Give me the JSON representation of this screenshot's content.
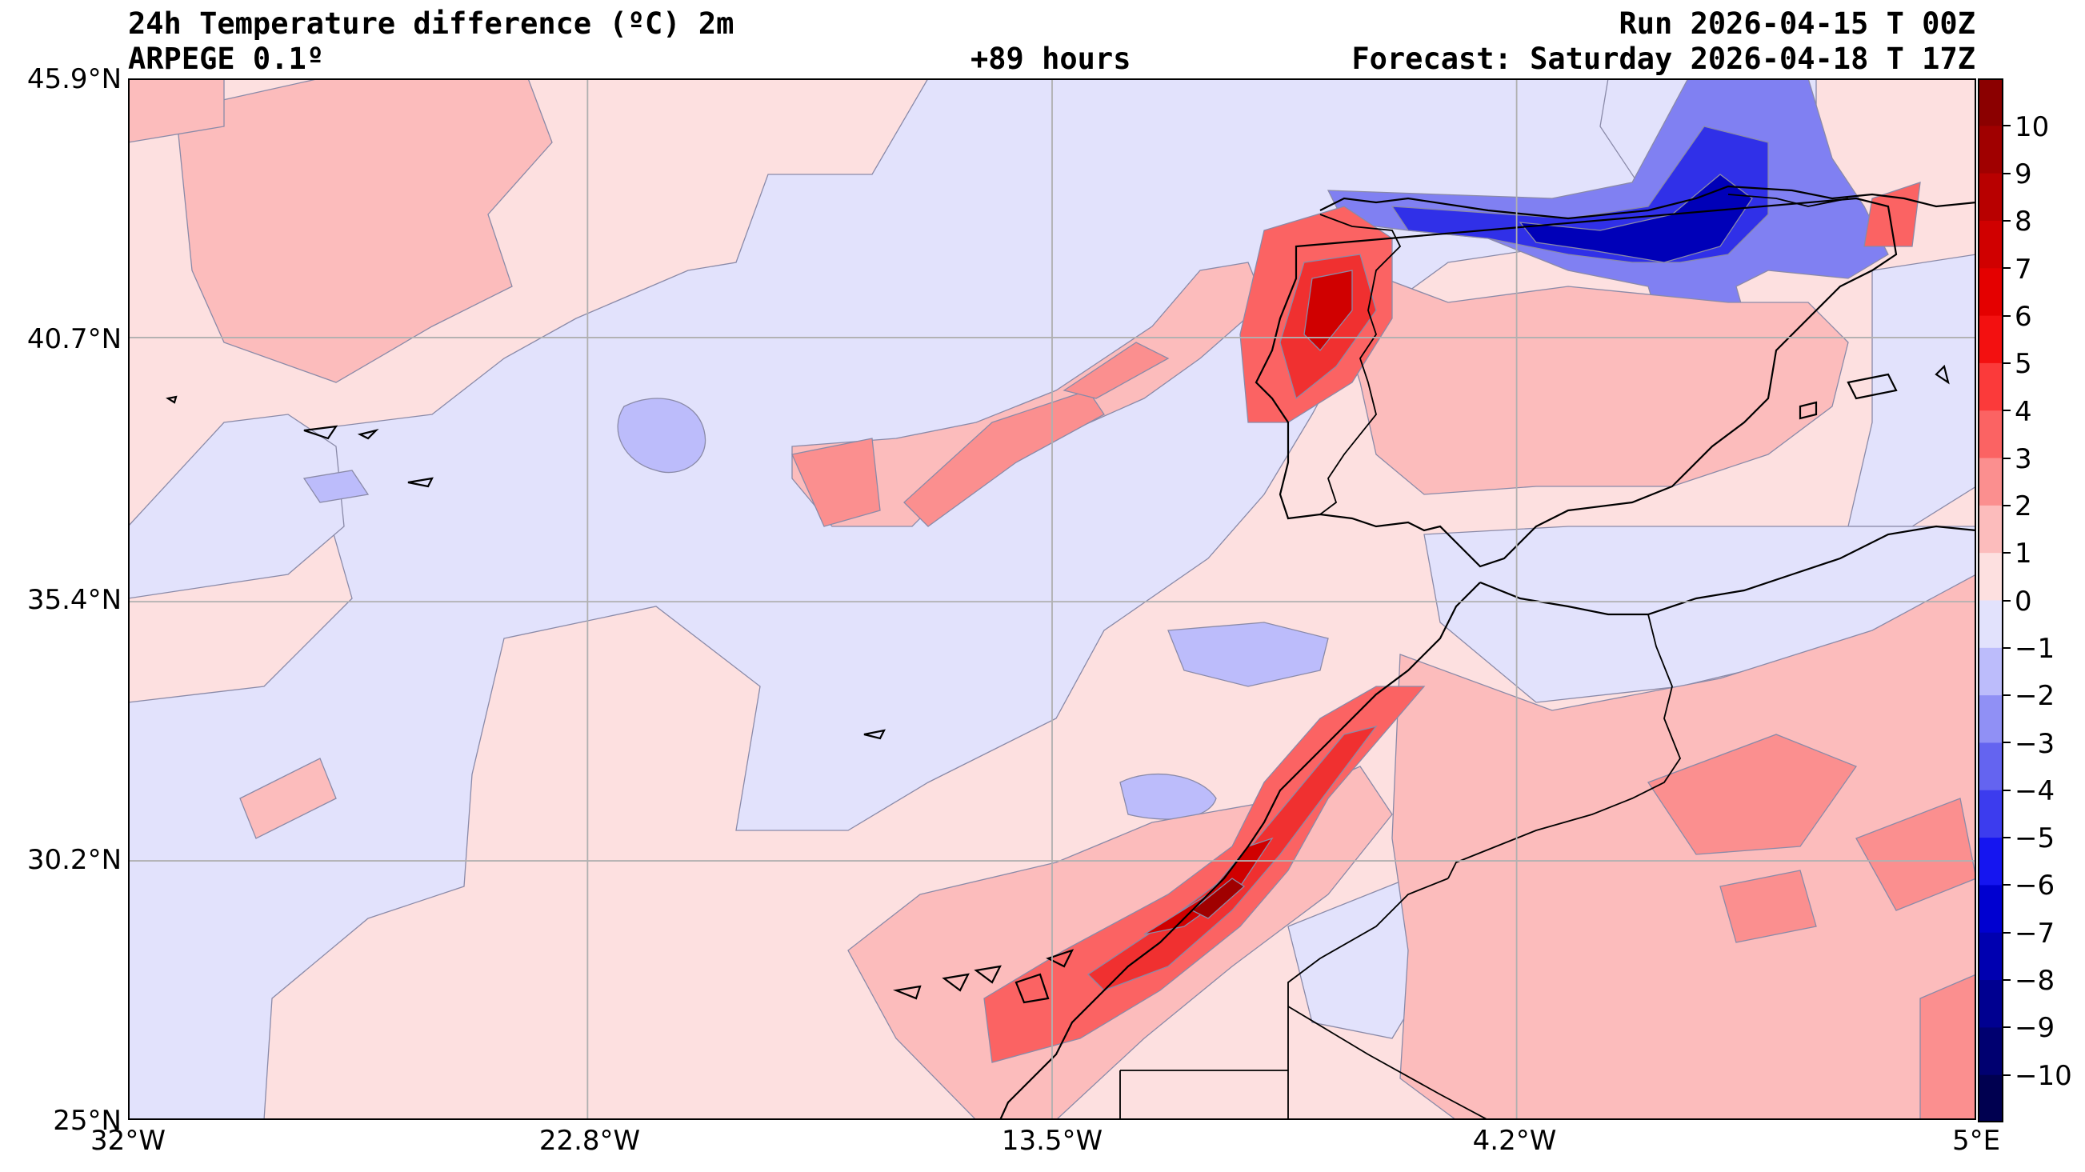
{
  "header": {
    "title": "24h Temperature difference (ºC) 2m",
    "model": "ARPEGE 0.1º",
    "lead_time": "+89 hours",
    "run": "Run 2026-04-15 T 00Z",
    "forecast": "Forecast: Saturday 2026-04-18 T 17Z"
  },
  "map": {
    "extent": {
      "lon_min": -32,
      "lon_max": 5,
      "lat_min": 25,
      "lat_max": 45.9
    },
    "lat_ticks": [
      {
        "value": 45.9,
        "label": "45.9°N"
      },
      {
        "value": 40.7,
        "label": "40.7°N"
      },
      {
        "value": 35.4,
        "label": "35.4°N"
      },
      {
        "value": 30.2,
        "label": "30.2°N"
      },
      {
        "value": 25.0,
        "label": "25°N"
      }
    ],
    "lon_ticks": [
      {
        "value": -32,
        "label": "32°W"
      },
      {
        "value": -22.8,
        "label": "22.8°W"
      },
      {
        "value": -13.5,
        "label": "13.5°W"
      },
      {
        "value": -4.2,
        "label": "4.2°W"
      },
      {
        "value": 5,
        "label": "5°E"
      }
    ],
    "gridline_color": "#b0b0b0"
  },
  "colorbar": {
    "labels": [
      "10",
      "9",
      "8",
      "7",
      "6",
      "5",
      "4",
      "3",
      "2",
      "1",
      "0",
      "−1",
      "−2",
      "−3",
      "−4",
      "−5",
      "−6",
      "−7",
      "−8",
      "−9",
      "−10"
    ],
    "colors_top_to_bottom": [
      "#8b0000",
      "#a00000",
      "#b80000",
      "#d00000",
      "#e40000",
      "#f31010",
      "#fb3a3a",
      "#fb6363",
      "#fb8f8f",
      "#fcbcbc",
      "#fde0e0",
      "#e2e2fc",
      "#bcbcfb",
      "#9090f5",
      "#6464f0",
      "#3c3cee",
      "#1515f0",
      "#0000d0",
      "#0000b0",
      "#000090",
      "#000070",
      "#000050"
    ]
  },
  "colors": {
    "pos1": "#fde0e0",
    "pos2": "#fcbcbc",
    "pos3": "#fb8f8f",
    "pos4": "#fb6363",
    "pos5": "#f03030",
    "pos6": "#d00000",
    "pos7": "#a00000",
    "neg1": "#e2e2fc",
    "neg2": "#bcbcfb",
    "neg3": "#8080f2",
    "neg4": "#3030e8",
    "neg5": "#0000b8"
  }
}
